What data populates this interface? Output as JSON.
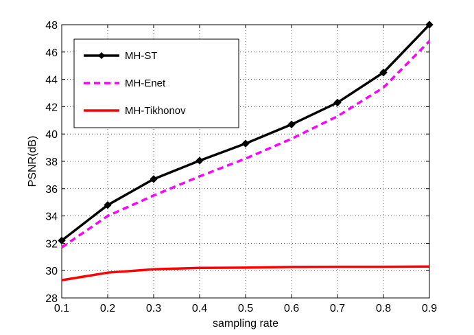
{
  "chart_data": {
    "type": "line",
    "title": "",
    "xlabel": "sampling rate",
    "ylabel": "PSNR(dB)",
    "xlim": [
      0.1,
      0.9
    ],
    "ylim": [
      28,
      48
    ],
    "x_ticks": [
      "0.1",
      "0.2",
      "0.3",
      "0.4",
      "0.5",
      "0.6",
      "0.7",
      "0.8",
      "0.9"
    ],
    "y_ticks": [
      "28",
      "30",
      "32",
      "34",
      "36",
      "38",
      "40",
      "42",
      "44",
      "46",
      "48"
    ],
    "grid": true,
    "legend_position": "top-left",
    "x": [
      0.1,
      0.2,
      0.3,
      0.4,
      0.5,
      0.6,
      0.7,
      0.8,
      0.9
    ],
    "series": [
      {
        "name": "MH-ST",
        "color": "#000000",
        "style": "solid-diamond",
        "values": [
          32.2,
          34.8,
          36.7,
          38.05,
          39.3,
          40.7,
          42.3,
          44.5,
          48.0
        ]
      },
      {
        "name": "MH-Enet",
        "color": "#ff00ff",
        "style": "dashed",
        "values": [
          31.7,
          34.0,
          35.5,
          36.9,
          38.2,
          39.65,
          41.3,
          43.4,
          46.8
        ]
      },
      {
        "name": "MH-Tikhonov",
        "color": "#ff0000",
        "style": "solid",
        "values": [
          29.3,
          29.85,
          30.1,
          30.2,
          30.22,
          30.27,
          30.28,
          30.28,
          30.3
        ]
      }
    ]
  }
}
